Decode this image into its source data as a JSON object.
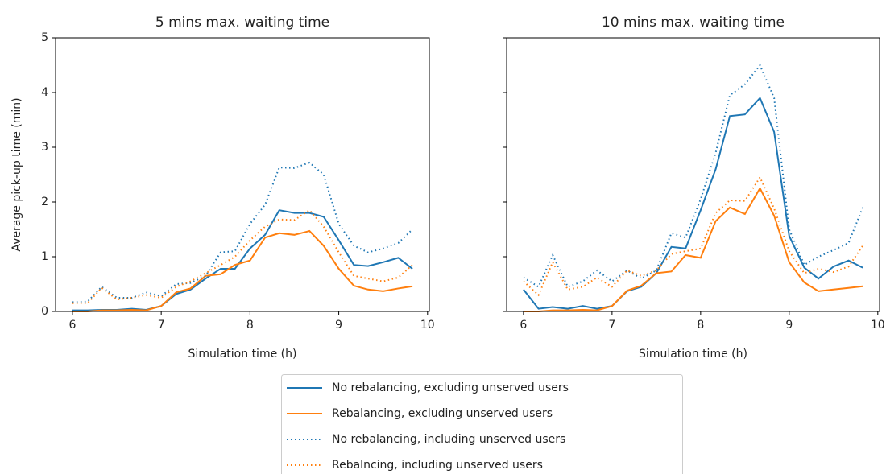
{
  "chart_data": [
    {
      "type": "line",
      "title": "5 mins max. waiting time",
      "xlabel": "Simulation time (h)",
      "ylabel": "Average pick-up time (min)",
      "x": [
        6,
        6.17,
        6.33,
        6.5,
        6.67,
        6.83,
        7,
        7.17,
        7.33,
        7.5,
        7.67,
        7.83,
        8,
        8.17,
        8.33,
        8.5,
        8.67,
        8.83,
        9,
        9.17,
        9.33,
        9.5,
        9.67,
        9.83
      ],
      "xlim": [
        5.81,
        10.02
      ],
      "ylim": [
        0,
        5
      ],
      "xticks": [
        6,
        7,
        8,
        9,
        10
      ],
      "yticks": [
        0,
        1,
        2,
        3,
        4,
        5
      ],
      "legend": "bottom",
      "series": [
        {
          "name": "No rebalancing, excluding unserved users",
          "color": "#1f77b4",
          "linestyle": "solid",
          "values": [
            0.02,
            0.02,
            0.03,
            0.03,
            0.05,
            0.03,
            0.1,
            0.32,
            0.4,
            0.6,
            0.78,
            0.78,
            1.15,
            1.4,
            1.85,
            1.8,
            1.8,
            1.73,
            1.3,
            0.85,
            0.83,
            0.9,
            0.98,
            0.78
          ]
        },
        {
          "name": "Rebalancing, excluding unserved users",
          "color": "#ff7f0e",
          "linestyle": "solid",
          "values": [
            0,
            0,
            0.02,
            0.02,
            0.03,
            0.02,
            0.1,
            0.35,
            0.42,
            0.65,
            0.68,
            0.85,
            0.93,
            1.35,
            1.43,
            1.4,
            1.47,
            1.2,
            0.78,
            0.47,
            0.4,
            0.37,
            0.42,
            0.46
          ]
        },
        {
          "name": "No rebalancing, including unserved users",
          "color": "#1f77b4",
          "linestyle": "dotted",
          "values": [
            0.17,
            0.18,
            0.45,
            0.25,
            0.25,
            0.35,
            0.28,
            0.5,
            0.52,
            0.65,
            1.08,
            1.1,
            1.6,
            1.95,
            2.63,
            2.62,
            2.72,
            2.5,
            1.6,
            1.2,
            1.08,
            1.15,
            1.25,
            1.5
          ]
        },
        {
          "name": "Rebalncing, including unserved users",
          "color": "#ff7f0e",
          "linestyle": "dotted",
          "values": [
            0.15,
            0.15,
            0.43,
            0.22,
            0.25,
            0.3,
            0.25,
            0.45,
            0.55,
            0.7,
            0.85,
            1.0,
            1.3,
            1.55,
            1.68,
            1.67,
            1.85,
            1.55,
            1.08,
            0.65,
            0.6,
            0.55,
            0.62,
            0.85
          ]
        }
      ]
    },
    {
      "type": "line",
      "title": "10 mins max. waiting time",
      "xlabel": "Simulation time (h)",
      "sharey": true,
      "x": [
        6,
        6.17,
        6.33,
        6.5,
        6.67,
        6.83,
        7,
        7.17,
        7.33,
        7.5,
        7.67,
        7.83,
        8,
        8.17,
        8.33,
        8.5,
        8.67,
        8.83,
        9,
        9.17,
        9.33,
        9.5,
        9.67,
        9.83
      ],
      "xlim": [
        5.81,
        10.02
      ],
      "ylim": [
        0,
        5
      ],
      "xticks": [
        6,
        7,
        8,
        9,
        10
      ],
      "series": [
        {
          "color": "#1f77b4",
          "linestyle": "solid",
          "values": [
            0.4,
            0.05,
            0.08,
            0.05,
            0.1,
            0.05,
            0.1,
            0.37,
            0.45,
            0.7,
            1.18,
            1.15,
            1.85,
            2.6,
            3.57,
            3.6,
            3.9,
            3.28,
            1.38,
            0.8,
            0.6,
            0.82,
            0.93,
            0.8
          ]
        },
        {
          "color": "#ff7f0e",
          "linestyle": "solid",
          "values": [
            0,
            0,
            0.02,
            0.02,
            0.03,
            0.02,
            0.1,
            0.38,
            0.47,
            0.7,
            0.73,
            1.03,
            0.98,
            1.65,
            1.9,
            1.78,
            2.25,
            1.75,
            0.9,
            0.53,
            0.37,
            0.4,
            0.43,
            0.46
          ]
        },
        {
          "color": "#1f77b4",
          "linestyle": "dotted",
          "values": [
            0.62,
            0.45,
            1.03,
            0.45,
            0.55,
            0.75,
            0.55,
            0.75,
            0.6,
            0.75,
            1.43,
            1.35,
            2.05,
            2.9,
            3.95,
            4.15,
            4.5,
            3.9,
            1.5,
            0.85,
            1.0,
            1.12,
            1.25,
            1.9
          ]
        },
        {
          "color": "#ff7f0e",
          "linestyle": "dotted",
          "values": [
            0.55,
            0.3,
            0.9,
            0.4,
            0.45,
            0.62,
            0.45,
            0.75,
            0.65,
            0.75,
            1.05,
            1.1,
            1.15,
            1.8,
            2.03,
            2.02,
            2.45,
            1.88,
            1.1,
            0.7,
            0.78,
            0.72,
            0.82,
            1.2
          ]
        }
      ]
    }
  ]
}
